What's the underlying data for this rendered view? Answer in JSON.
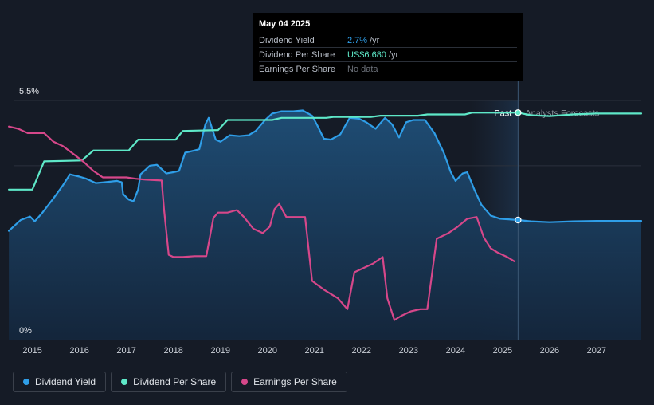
{
  "tooltip": {
    "date": "May 04 2025",
    "rows": [
      {
        "label": "Dividend Yield",
        "value": "2.7%",
        "unit": "/yr",
        "color": "#2f9ee8"
      },
      {
        "label": "Dividend Per Share",
        "value": "US$6.680",
        "unit": "/yr",
        "color": "#5ee8c8"
      },
      {
        "label": "Earnings Per Share",
        "value": "No data",
        "unit": "",
        "color": "#6d727b"
      }
    ]
  },
  "legend": [
    {
      "label": "Dividend Yield",
      "color": "#2f9ee8"
    },
    {
      "label": "Dividend Per Share",
      "color": "#5ee8c8"
    },
    {
      "label": "Earnings Per Share",
      "color": "#d6478a"
    }
  ],
  "chart_data": {
    "type": "line",
    "x_range": [
      2014.6,
      2027.95
    ],
    "xticks": [
      2015,
      2016,
      2017,
      2018,
      2019,
      2020,
      2021,
      2022,
      2023,
      2024,
      2025,
      2026,
      2027
    ],
    "y_range": [
      0,
      5.5
    ],
    "y_labels": {
      "top": "5.5%",
      "bottom": "0%"
    },
    "divider_x": 2025.33,
    "forecast_start_x": 2024.33,
    "past_label": "Past",
    "forecast_label": "Analysts Forecasts",
    "series": [
      {
        "name": "Dividend Yield",
        "color": "#2f9ee8",
        "filled": true,
        "marker_x": 2025.33,
        "points": [
          [
            2014.5,
            2.5
          ],
          [
            2014.75,
            2.75
          ],
          [
            2014.95,
            2.83
          ],
          [
            2015.05,
            2.72
          ],
          [
            2015.2,
            2.9
          ],
          [
            2015.45,
            3.25
          ],
          [
            2015.65,
            3.55
          ],
          [
            2015.8,
            3.8
          ],
          [
            2016.0,
            3.75
          ],
          [
            2016.15,
            3.7
          ],
          [
            2016.35,
            3.6
          ],
          [
            2016.55,
            3.62
          ],
          [
            2016.8,
            3.65
          ],
          [
            2016.9,
            3.62
          ],
          [
            2016.93,
            3.35
          ],
          [
            2017.05,
            3.22
          ],
          [
            2017.15,
            3.18
          ],
          [
            2017.25,
            3.45
          ],
          [
            2017.3,
            3.8
          ],
          [
            2017.5,
            4.0
          ],
          [
            2017.65,
            4.02
          ],
          [
            2017.85,
            3.82
          ],
          [
            2018.0,
            3.85
          ],
          [
            2018.12,
            3.88
          ],
          [
            2018.25,
            4.3
          ],
          [
            2018.45,
            4.35
          ],
          [
            2018.55,
            4.38
          ],
          [
            2018.68,
            4.95
          ],
          [
            2018.75,
            5.1
          ],
          [
            2018.9,
            4.6
          ],
          [
            2019.0,
            4.55
          ],
          [
            2019.2,
            4.7
          ],
          [
            2019.4,
            4.68
          ],
          [
            2019.6,
            4.7
          ],
          [
            2019.75,
            4.8
          ],
          [
            2019.95,
            5.05
          ],
          [
            2020.1,
            5.2
          ],
          [
            2020.3,
            5.25
          ],
          [
            2020.55,
            5.25
          ],
          [
            2020.75,
            5.27
          ],
          [
            2020.95,
            5.15
          ],
          [
            2021.05,
            4.95
          ],
          [
            2021.2,
            4.62
          ],
          [
            2021.35,
            4.6
          ],
          [
            2021.55,
            4.72
          ],
          [
            2021.75,
            5.1
          ],
          [
            2021.95,
            5.08
          ],
          [
            2022.1,
            5.0
          ],
          [
            2022.3,
            4.85
          ],
          [
            2022.5,
            5.1
          ],
          [
            2022.65,
            4.95
          ],
          [
            2022.8,
            4.65
          ],
          [
            2022.95,
            5.0
          ],
          [
            2023.1,
            5.05
          ],
          [
            2023.35,
            5.05
          ],
          [
            2023.55,
            4.75
          ],
          [
            2023.75,
            4.3
          ],
          [
            2023.9,
            3.85
          ],
          [
            2024.0,
            3.65
          ],
          [
            2024.15,
            3.82
          ],
          [
            2024.25,
            3.85
          ],
          [
            2024.4,
            3.45
          ],
          [
            2024.55,
            3.1
          ],
          [
            2024.75,
            2.85
          ],
          [
            2024.95,
            2.78
          ],
          [
            2025.33,
            2.75
          ],
          [
            2025.6,
            2.72
          ],
          [
            2026.0,
            2.7
          ],
          [
            2026.5,
            2.72
          ],
          [
            2027.0,
            2.73
          ],
          [
            2027.95,
            2.73
          ]
        ]
      },
      {
        "name": "Dividend Per Share",
        "color": "#5ee8c8",
        "filled": false,
        "marker_x": 2025.33,
        "points": [
          [
            2014.5,
            3.45
          ],
          [
            2015.0,
            3.45
          ],
          [
            2015.25,
            4.1
          ],
          [
            2016.05,
            4.12
          ],
          [
            2016.3,
            4.35
          ],
          [
            2017.05,
            4.35
          ],
          [
            2017.25,
            4.6
          ],
          [
            2018.05,
            4.6
          ],
          [
            2018.2,
            4.8
          ],
          [
            2018.95,
            4.82
          ],
          [
            2019.15,
            5.05
          ],
          [
            2020.1,
            5.05
          ],
          [
            2020.3,
            5.1
          ],
          [
            2021.25,
            5.1
          ],
          [
            2021.4,
            5.12
          ],
          [
            2022.2,
            5.12
          ],
          [
            2022.4,
            5.15
          ],
          [
            2023.2,
            5.15
          ],
          [
            2023.4,
            5.18
          ],
          [
            2024.2,
            5.18
          ],
          [
            2024.35,
            5.22
          ],
          [
            2025.33,
            5.22
          ],
          [
            2025.6,
            5.16
          ],
          [
            2026.0,
            5.14
          ],
          [
            2026.5,
            5.18
          ],
          [
            2027.0,
            5.2
          ],
          [
            2027.95,
            5.2
          ]
        ]
      },
      {
        "name": "Earnings Per Share",
        "color": "#d6478a",
        "filled": false,
        "marker_x": null,
        "points": [
          [
            2014.5,
            4.9
          ],
          [
            2014.7,
            4.85
          ],
          [
            2014.9,
            4.75
          ],
          [
            2015.05,
            4.75
          ],
          [
            2015.25,
            4.75
          ],
          [
            2015.45,
            4.55
          ],
          [
            2015.65,
            4.45
          ],
          [
            2015.9,
            4.25
          ],
          [
            2016.1,
            4.08
          ],
          [
            2016.3,
            3.88
          ],
          [
            2016.5,
            3.73
          ],
          [
            2016.75,
            3.73
          ],
          [
            2017.0,
            3.73
          ],
          [
            2017.2,
            3.7
          ],
          [
            2017.4,
            3.68
          ],
          [
            2017.75,
            3.66
          ],
          [
            2017.8,
            3.0
          ],
          [
            2017.9,
            1.95
          ],
          [
            2018.0,
            1.9
          ],
          [
            2018.2,
            1.9
          ],
          [
            2018.45,
            1.92
          ],
          [
            2018.7,
            1.92
          ],
          [
            2018.85,
            2.8
          ],
          [
            2018.95,
            2.92
          ],
          [
            2019.15,
            2.92
          ],
          [
            2019.35,
            2.98
          ],
          [
            2019.5,
            2.82
          ],
          [
            2019.7,
            2.55
          ],
          [
            2019.9,
            2.45
          ],
          [
            2020.05,
            2.6
          ],
          [
            2020.15,
            3.0
          ],
          [
            2020.25,
            3.12
          ],
          [
            2020.4,
            2.82
          ],
          [
            2020.6,
            2.82
          ],
          [
            2020.8,
            2.82
          ],
          [
            2020.95,
            1.35
          ],
          [
            2021.2,
            1.15
          ],
          [
            2021.5,
            0.95
          ],
          [
            2021.7,
            0.7
          ],
          [
            2021.85,
            1.55
          ],
          [
            2022.05,
            1.65
          ],
          [
            2022.25,
            1.75
          ],
          [
            2022.45,
            1.9
          ],
          [
            2022.55,
            0.95
          ],
          [
            2022.7,
            0.45
          ],
          [
            2022.85,
            0.55
          ],
          [
            2023.05,
            0.65
          ],
          [
            2023.25,
            0.7
          ],
          [
            2023.4,
            0.7
          ],
          [
            2023.6,
            2.32
          ],
          [
            2023.85,
            2.45
          ],
          [
            2024.05,
            2.6
          ],
          [
            2024.25,
            2.78
          ],
          [
            2024.45,
            2.82
          ],
          [
            2024.6,
            2.35
          ],
          [
            2024.75,
            2.1
          ],
          [
            2024.9,
            2.0
          ],
          [
            2025.1,
            1.9
          ],
          [
            2025.25,
            1.8
          ]
        ]
      }
    ]
  }
}
